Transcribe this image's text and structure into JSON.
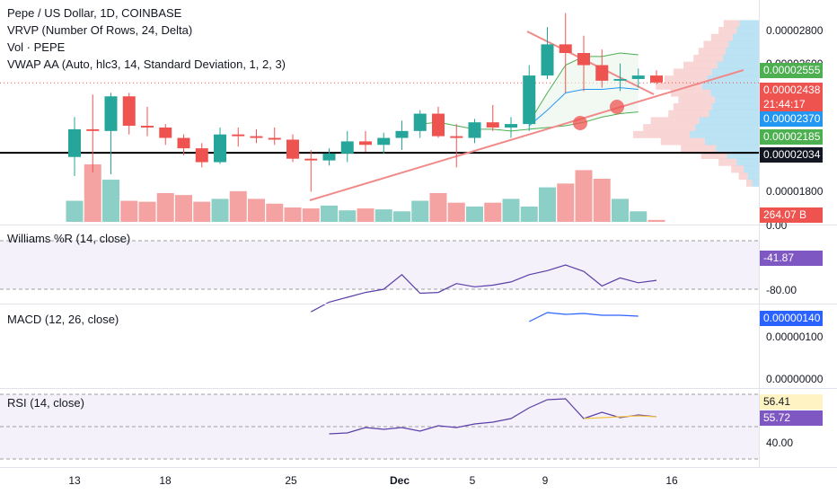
{
  "legend": {
    "title": "Pepe / US Dollar, 1D, COINBASE",
    "vrvp": "VRVP (Number Of Rows, 24, Delta)",
    "vol": "Vol · PEPE",
    "vwap": "VWAP AA (Auto, hlc3, 14, Standard Deviation, 1, 2, 3)"
  },
  "price_axis": {
    "ticks": [
      "0.00002800",
      "0.00002600",
      "0.00001800",
      "0.00"
    ],
    "badges": {
      "vwap_upper": "0.00002555",
      "last": "0.00002438",
      "countdown": "21:44:17",
      "vwap_mid": "0.00002370",
      "vwap_lower": "0.00002185",
      "hline": "0.00002034",
      "volume": "264.07 B"
    }
  },
  "colors": {
    "up": "#26a69a",
    "down": "#ef5350",
    "up_vol": "#8ccfc6",
    "down_vol": "#f5a3a2",
    "trend": "#f08a8a",
    "wr_line": "#5b3fa8",
    "macd_line": "#2962ff",
    "rsi_line": "#5b3fa8",
    "rsi_ma": "#f5c342",
    "vwap_mid": "#2196f3",
    "vwap_band": "#4caf50"
  },
  "williams": {
    "label": "Williams %R (14, close)",
    "value": "-41.87",
    "tick": "-80.00"
  },
  "macd": {
    "label": "MACD (12, 26, close)",
    "value": "0.00000140",
    "tick1": "0.00000100",
    "tick2": "0.00000000"
  },
  "rsi": {
    "label": "RSI (14, close)",
    "value": "56.41",
    "ma_value": "55.72",
    "tick": "40.00"
  },
  "xaxis": {
    "labels": [
      "13",
      "18",
      "25",
      "Dec",
      "5",
      "9",
      "16"
    ]
  },
  "chart_data": {
    "type": "candlestick",
    "title": "Pepe / US Dollar, 1D, COINBASE",
    "y_range": [
      1.62e-05,
      2.89e-05
    ],
    "candles": [
      {
        "o": 20.1,
        "h": 22.4,
        "l": 19.0,
        "c": 21.7
      },
      {
        "o": 21.7,
        "h": 23.7,
        "l": 19.2,
        "c": 21.6
      },
      {
        "o": 21.6,
        "h": 23.8,
        "l": 19.1,
        "c": 23.6
      },
      {
        "o": 23.6,
        "h": 23.8,
        "l": 21.4,
        "c": 21.9
      },
      {
        "o": 21.9,
        "h": 23.0,
        "l": 21.3,
        "c": 21.8
      },
      {
        "o": 21.8,
        "h": 22.0,
        "l": 20.8,
        "c": 21.2
      },
      {
        "o": 21.2,
        "h": 21.4,
        "l": 20.2,
        "c": 20.6
      },
      {
        "o": 20.6,
        "h": 20.9,
        "l": 19.5,
        "c": 19.8
      },
      {
        "o": 19.8,
        "h": 21.8,
        "l": 19.7,
        "c": 21.4
      },
      {
        "o": 21.4,
        "h": 21.8,
        "l": 20.7,
        "c": 21.3
      },
      {
        "o": 21.3,
        "h": 21.7,
        "l": 20.9,
        "c": 21.2
      },
      {
        "o": 21.2,
        "h": 21.8,
        "l": 20.8,
        "c": 21.1
      },
      {
        "o": 21.1,
        "h": 21.4,
        "l": 19.8,
        "c": 20.0
      },
      {
        "o": 20.0,
        "h": 20.5,
        "l": 18.1,
        "c": 19.9
      },
      {
        "o": 19.9,
        "h": 20.6,
        "l": 19.6,
        "c": 20.3
      },
      {
        "o": 20.3,
        "h": 21.6,
        "l": 19.8,
        "c": 21.0
      },
      {
        "o": 21.0,
        "h": 21.6,
        "l": 20.4,
        "c": 20.8
      },
      {
        "o": 20.8,
        "h": 21.5,
        "l": 20.3,
        "c": 21.2
      },
      {
        "o": 21.2,
        "h": 22.2,
        "l": 20.5,
        "c": 21.6
      },
      {
        "o": 21.6,
        "h": 22.8,
        "l": 21.2,
        "c": 22.6
      },
      {
        "o": 22.6,
        "h": 23.0,
        "l": 21.2,
        "c": 21.3
      },
      {
        "o": 21.3,
        "h": 22.0,
        "l": 19.5,
        "c": 21.2
      },
      {
        "o": 21.2,
        "h": 22.3,
        "l": 20.9,
        "c": 22.1
      },
      {
        "o": 22.1,
        "h": 23.1,
        "l": 21.6,
        "c": 21.8
      },
      {
        "o": 21.8,
        "h": 22.4,
        "l": 21.2,
        "c": 22.0
      },
      {
        "o": 22.0,
        "h": 25.4,
        "l": 21.6,
        "c": 24.8
      },
      {
        "o": 24.8,
        "h": 27.6,
        "l": 24.6,
        "c": 26.6
      },
      {
        "o": 26.6,
        "h": 28.4,
        "l": 23.8,
        "c": 26.1
      },
      {
        "o": 26.1,
        "h": 27.1,
        "l": 23.9,
        "c": 25.4
      },
      {
        "o": 25.4,
        "h": 26.3,
        "l": 24.1,
        "c": 24.5
      },
      {
        "o": 24.5,
        "h": 25.5,
        "l": 23.9,
        "c": 24.6
      },
      {
        "o": 24.6,
        "h": 25.2,
        "l": 24.1,
        "c": 24.8
      },
      {
        "o": 24.8,
        "h": 25.1,
        "l": 24.3,
        "c": 24.4
      }
    ],
    "volume": [
      22,
      60,
      44,
      22,
      21,
      30,
      28,
      21,
      24,
      32,
      24,
      19,
      15,
      14,
      17,
      12,
      14,
      13,
      11,
      22,
      30,
      20,
      16,
      20,
      24,
      16,
      36,
      40,
      54,
      45,
      24,
      11,
      2
    ]
  }
}
